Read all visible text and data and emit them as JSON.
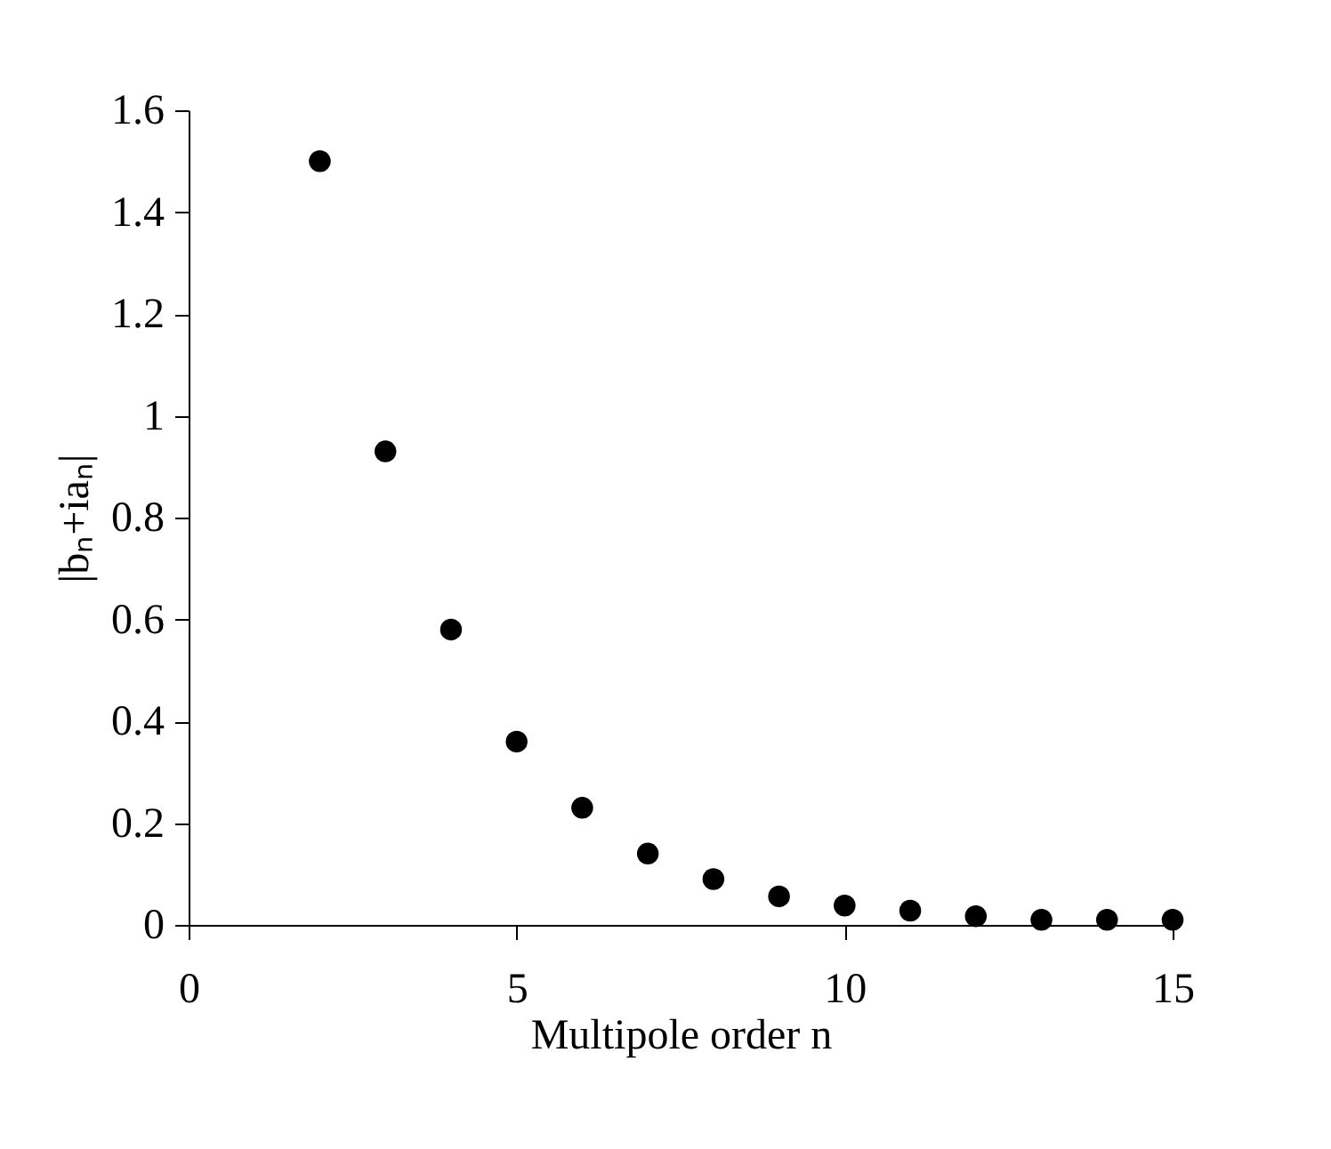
{
  "chart_data": {
    "type": "scatter",
    "xlabel": "Multipole order n",
    "ylabel": "|bₙ+iaₙ|",
    "x": [
      2,
      3,
      4,
      5,
      6,
      7,
      8,
      9,
      10,
      11,
      12,
      13,
      14,
      15
    ],
    "series": [
      {
        "color": "#000000",
        "values": [
          1.5,
          0.93,
          0.58,
          0.36,
          0.23,
          0.14,
          0.09,
          0.056,
          0.038,
          0.028,
          0.017,
          0.01,
          0.01,
          0.01
        ]
      }
    ],
    "xlim": [
      0,
      15
    ],
    "ylim": [
      0,
      1.6
    ],
    "xticks": [
      0,
      5,
      10,
      15
    ],
    "yticks": [
      0,
      0.2,
      0.4,
      0.6,
      0.8,
      1,
      1.2,
      1.4,
      1.6
    ],
    "grid": false,
    "legend": false,
    "marker": "circle"
  }
}
